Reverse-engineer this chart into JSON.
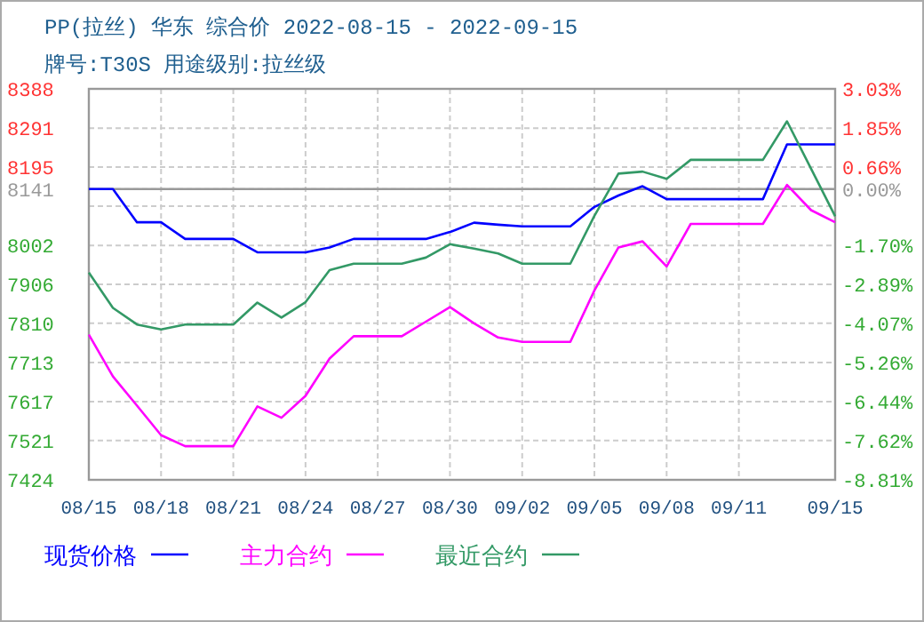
{
  "chart_data": {
    "type": "line",
    "title": "PP(拉丝) 华东 综合价 2022-08-15 - 2022-09-15",
    "subtitle": "牌号:T30S 用途级别:拉丝级",
    "x": [
      "2022-08-15",
      "2022-08-16",
      "2022-08-17",
      "2022-08-18",
      "2022-08-19",
      "2022-08-20",
      "2022-08-21",
      "2022-08-22",
      "2022-08-23",
      "2022-08-24",
      "2022-08-25",
      "2022-08-26",
      "2022-08-27",
      "2022-08-28",
      "2022-08-29",
      "2022-08-30",
      "2022-08-31",
      "2022-09-01",
      "2022-09-02",
      "2022-09-03",
      "2022-09-04",
      "2022-09-05",
      "2022-09-06",
      "2022-09-07",
      "2022-09-08",
      "2022-09-09",
      "2022-09-10",
      "2022-09-11",
      "2022-09-12",
      "2022-09-13",
      "2022-09-14",
      "2022-09-15"
    ],
    "series": [
      {
        "name": "现货价格",
        "color": "#0000ff",
        "values": [
          8141,
          8141,
          8059,
          8059,
          8018,
          8018,
          8018,
          7985,
          7985,
          7985,
          7997,
          8018,
          8018,
          8018,
          8018,
          8035,
          8058,
          8053,
          8049,
          8049,
          8049,
          8097,
          8125,
          8148,
          8116,
          8116,
          8116,
          8116,
          8116,
          8251,
          8251,
          8251
        ]
      },
      {
        "name": "主力合约",
        "color": "#ff00ff",
        "values": [
          7782,
          7679,
          7607,
          7534,
          7507,
          7507,
          7507,
          7605,
          7577,
          7631,
          7723,
          7778,
          7778,
          7778,
          7814,
          7850,
          7810,
          7775,
          7764,
          7764,
          7764,
          7891,
          7997,
          8012,
          7950,
          8055,
          8055,
          8055,
          8055,
          8151,
          8089,
          8059
        ]
      },
      {
        "name": "最近合约",
        "color": "#339966",
        "values": [
          7935,
          7848,
          7807,
          7795,
          7807,
          7807,
          7807,
          7861,
          7824,
          7862,
          7941,
          7957,
          7957,
          7957,
          7972,
          8005,
          7994,
          7982,
          7957,
          7957,
          7957,
          8075,
          8179,
          8184,
          8166,
          8213,
          8213,
          8213,
          8213,
          8308,
          8191,
          8074
        ]
      }
    ],
    "xlim": [
      "2022-08-15",
      "2022-09-15"
    ],
    "xticks": [
      {
        "value": "2022-08-15",
        "label": "08/15"
      },
      {
        "value": "2022-08-18",
        "label": "08/18"
      },
      {
        "value": "2022-08-21",
        "label": "08/21"
      },
      {
        "value": "2022-08-24",
        "label": "08/24"
      },
      {
        "value": "2022-08-27",
        "label": "08/27"
      },
      {
        "value": "2022-08-30",
        "label": "08/30"
      },
      {
        "value": "2022-09-02",
        "label": "09/02"
      },
      {
        "value": "2022-09-05",
        "label": "09/05"
      },
      {
        "value": "2022-09-08",
        "label": "09/08"
      },
      {
        "value": "2022-09-11",
        "label": "09/11"
      },
      {
        "value": "2022-09-15",
        "label": "09/15"
      }
    ],
    "ylim": [
      7424,
      8388
    ],
    "yticks": [
      7424,
      7521,
      7617,
      7713,
      7810,
      7906,
      8002,
      {
        "value": 8098.8,
        "label": null
      },
      8141,
      8195,
      8291,
      8388
    ],
    "y2lim": [
      -8.81,
      3.03
    ],
    "y2ticks": [
      {
        "value": -8.81,
        "label": "-8.81%"
      },
      {
        "value": -7.62,
        "label": "-7.62%"
      },
      {
        "value": -6.44,
        "label": "-6.44%"
      },
      {
        "value": -5.26,
        "label": "-5.26%"
      },
      {
        "value": -4.07,
        "label": "-4.07%"
      },
      {
        "value": -2.89,
        "label": "-2.89%"
      },
      {
        "value": -1.7,
        "label": "-1.70%"
      },
      {
        "value": -0.52,
        "label": null
      },
      {
        "value": 0,
        "label": "0.00%"
      },
      {
        "value": 0.66,
        "label": "0.66%"
      },
      {
        "value": 1.85,
        "label": "1.85%"
      },
      {
        "value": 3.03,
        "label": "3.03%"
      }
    ],
    "ref_lines": [
      {
        "axis": "y",
        "value": 8141,
        "color": "#999999"
      }
    ],
    "grid": true,
    "legend": "bottom",
    "marker": "none",
    "line_style": "solid"
  }
}
